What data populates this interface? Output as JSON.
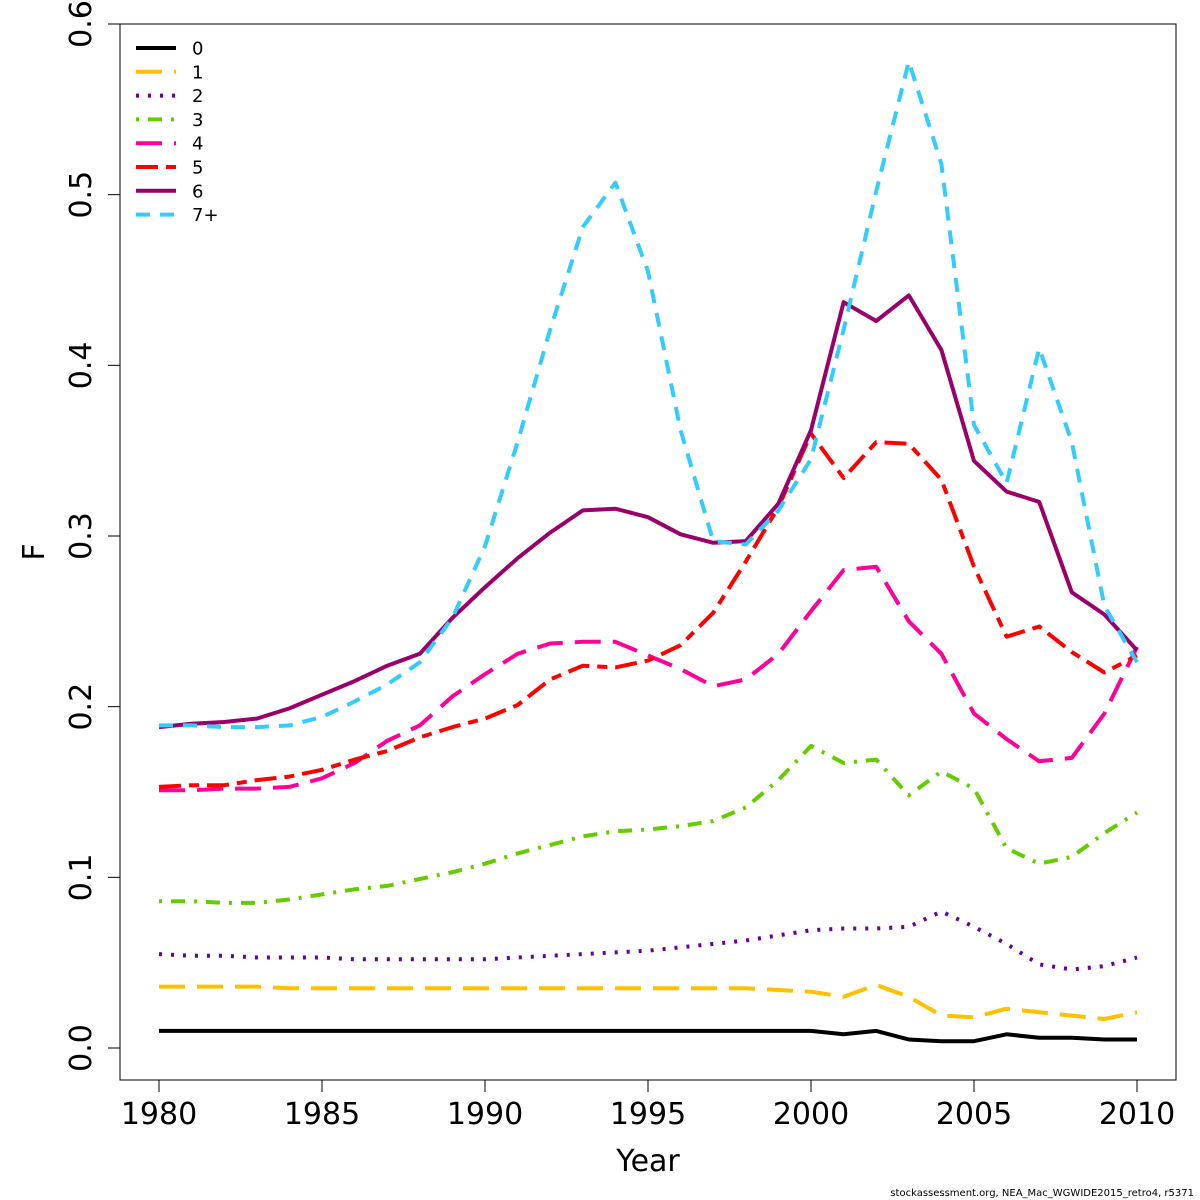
{
  "chart_data": {
    "type": "line",
    "xlabel": "Year",
    "ylabel": "F",
    "xlim": [
      1980,
      2010
    ],
    "ylim": [
      0,
      0.6
    ],
    "x_ticks": [
      1980,
      1985,
      1990,
      1995,
      2000,
      2005,
      2010
    ],
    "y_ticks": [
      0.0,
      0.1,
      0.2,
      0.3,
      0.4,
      0.5,
      0.6
    ],
    "x_tick_labels": [
      "1980",
      "1985",
      "1990",
      "1995",
      "2000",
      "2005",
      "2010"
    ],
    "y_tick_labels": [
      "0.0",
      "0.1",
      "0.2",
      "0.3",
      "0.4",
      "0.5",
      "0.6"
    ],
    "legend_position": "top-left",
    "grid": false,
    "caption": "stockassessment.org, NEA_Mac_WGWIDE2015_retro4, r5371",
    "x": [
      1980,
      1981,
      1982,
      1983,
      1984,
      1985,
      1986,
      1987,
      1988,
      1989,
      1990,
      1991,
      1992,
      1993,
      1994,
      1995,
      1996,
      1997,
      1998,
      1999,
      2000,
      2001,
      2002,
      2003,
      2004,
      2005,
      2006,
      2007,
      2008,
      2009,
      2010
    ],
    "series": [
      {
        "name": "0",
        "color": "#000000",
        "dash": "solid",
        "values": [
          0.01,
          0.01,
          0.01,
          0.01,
          0.01,
          0.01,
          0.01,
          0.01,
          0.01,
          0.01,
          0.01,
          0.01,
          0.01,
          0.01,
          0.01,
          0.01,
          0.01,
          0.01,
          0.01,
          0.01,
          0.01,
          0.008,
          0.01,
          0.005,
          0.004,
          0.004,
          0.008,
          0.006,
          0.006,
          0.005,
          0.005
        ]
      },
      {
        "name": "1",
        "color": "#FFC000",
        "dash": "long-dash",
        "values": [
          0.036,
          0.036,
          0.036,
          0.036,
          0.035,
          0.035,
          0.035,
          0.035,
          0.035,
          0.035,
          0.035,
          0.035,
          0.035,
          0.035,
          0.035,
          0.035,
          0.035,
          0.035,
          0.035,
          0.034,
          0.033,
          0.03,
          0.037,
          0.03,
          0.019,
          0.018,
          0.023,
          0.021,
          0.019,
          0.017,
          0.021
        ]
      },
      {
        "name": "2",
        "color": "#660099",
        "dash": "dotted",
        "values": [
          0.055,
          0.054,
          0.054,
          0.053,
          0.053,
          0.053,
          0.052,
          0.052,
          0.052,
          0.052,
          0.052,
          0.053,
          0.054,
          0.055,
          0.056,
          0.057,
          0.059,
          0.061,
          0.063,
          0.066,
          0.069,
          0.07,
          0.07,
          0.071,
          0.08,
          0.071,
          0.061,
          0.049,
          0.046,
          0.048,
          0.053
        ]
      },
      {
        "name": "3",
        "color": "#66CC00",
        "dash": "dot-dash",
        "values": [
          0.086,
          0.086,
          0.085,
          0.085,
          0.087,
          0.09,
          0.093,
          0.095,
          0.099,
          0.103,
          0.108,
          0.114,
          0.119,
          0.124,
          0.127,
          0.128,
          0.13,
          0.133,
          0.141,
          0.157,
          0.177,
          0.167,
          0.169,
          0.148,
          0.162,
          0.152,
          0.117,
          0.108,
          0.112,
          0.126,
          0.138
        ]
      },
      {
        "name": "4",
        "color": "#FF0099",
        "dash": "long-dash",
        "values": [
          0.151,
          0.151,
          0.152,
          0.152,
          0.153,
          0.158,
          0.167,
          0.18,
          0.189,
          0.206,
          0.219,
          0.231,
          0.237,
          0.238,
          0.238,
          0.23,
          0.222,
          0.212,
          0.216,
          0.231,
          0.256,
          0.28,
          0.282,
          0.25,
          0.231,
          0.196,
          0.181,
          0.168,
          0.17,
          0.196,
          0.235
        ]
      },
      {
        "name": "5",
        "color": "#FF0000",
        "dash": "two-dash",
        "values": [
          0.153,
          0.154,
          0.154,
          0.157,
          0.159,
          0.163,
          0.169,
          0.174,
          0.182,
          0.188,
          0.193,
          0.201,
          0.216,
          0.224,
          0.223,
          0.227,
          0.236,
          0.255,
          0.285,
          0.317,
          0.36,
          0.334,
          0.355,
          0.354,
          0.333,
          0.282,
          0.241,
          0.247,
          0.232,
          0.22,
          0.23
        ]
      },
      {
        "name": "6",
        "color": "#99006A",
        "dash": "solid",
        "values": [
          0.188,
          0.19,
          0.191,
          0.193,
          0.199,
          0.207,
          0.215,
          0.224,
          0.231,
          0.252,
          0.27,
          0.287,
          0.302,
          0.315,
          0.316,
          0.311,
          0.301,
          0.296,
          0.297,
          0.319,
          0.362,
          0.437,
          0.426,
          0.441,
          0.409,
          0.344,
          0.326,
          0.32,
          0.267,
          0.254,
          0.233
        ]
      },
      {
        "name": "7+",
        "color": "#33CCFF",
        "dash": "dashed",
        "values": [
          0.189,
          0.189,
          0.188,
          0.188,
          0.189,
          0.194,
          0.203,
          0.213,
          0.226,
          0.252,
          0.294,
          0.355,
          0.421,
          0.481,
          0.507,
          0.455,
          0.362,
          0.297,
          0.295,
          0.315,
          0.345,
          0.421,
          0.502,
          0.578,
          0.518,
          0.365,
          0.331,
          0.41,
          0.355,
          0.259,
          0.226
        ]
      }
    ]
  }
}
